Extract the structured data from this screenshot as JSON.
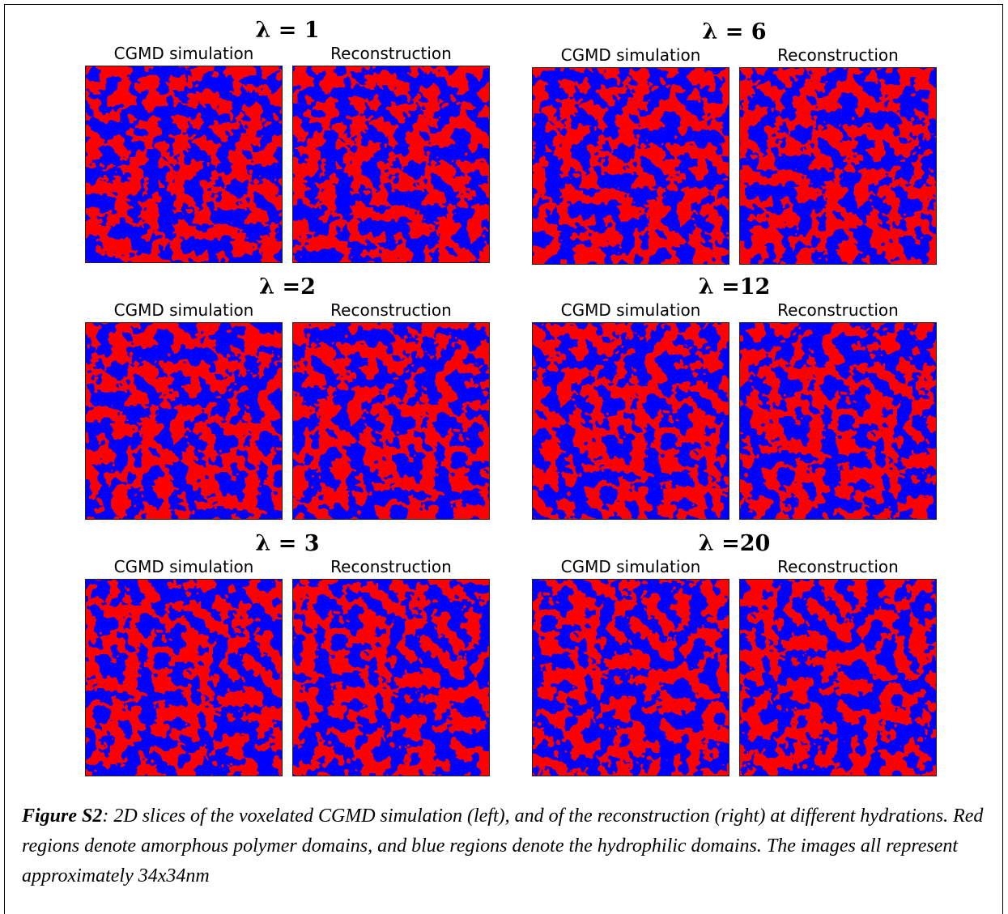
{
  "figure": {
    "panels": [
      {
        "title": "λ = 1",
        "left_label": "CGMD simulation",
        "right_label": "Reconstruction"
      },
      {
        "title": "λ = 6",
        "left_label": "CGMD simulation",
        "right_label": "Reconstruction"
      },
      {
        "title": "λ =2",
        "left_label": "CGMD simulation",
        "right_label": "Reconstruction"
      },
      {
        "title": "λ =12",
        "left_label": "CGMD simulation",
        "right_label": "Reconstruction"
      },
      {
        "title": "λ = 3",
        "left_label": "CGMD simulation",
        "right_label": "Reconstruction"
      },
      {
        "title": "λ =20",
        "left_label": "CGMD simulation",
        "right_label": "Reconstruction"
      }
    ],
    "caption": {
      "label": "Figure S2",
      "text": ": 2D slices of the voxelated CGMD simulation (left), and of the reconstruction (right) at different hydrations. Red regions denote amorphous polymer domains, and blue regions denote the hydrophilic domains. The images all represent approximately 34x34nm"
    }
  }
}
